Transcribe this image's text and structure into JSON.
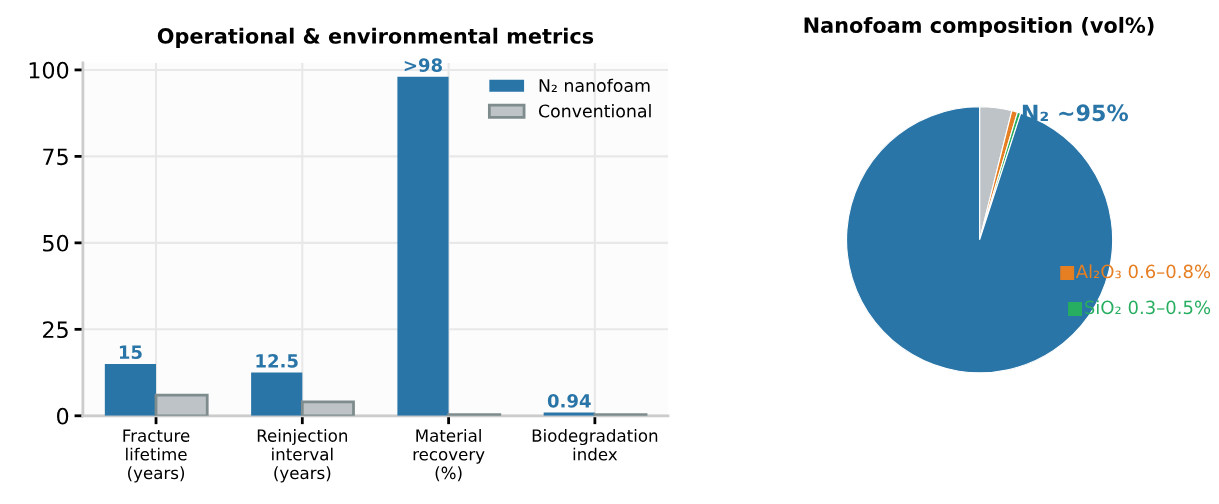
{
  "chart_data": [
    {
      "type": "bar",
      "title": "Operational & environmental metrics",
      "categories": [
        "Fracture\nlifetime\n(years)",
        "Reinjection\ninterval\n(years)",
        "Material\nrecovery\n(%)",
        "Biodegradation\nindex"
      ],
      "series": [
        {
          "name": "N₂ nanofoam",
          "color": "#2a75a8",
          "values": [
            15,
            12.5,
            98,
            0.94
          ],
          "value_labels": [
            "15",
            "12.5",
            ">98",
            "0.94"
          ]
        },
        {
          "name": "Conventional",
          "color": "#bdc3c7",
          "values": [
            6,
            4,
            0.3,
            0.3
          ]
        }
      ],
      "ylim": [
        0,
        102
      ],
      "yticks": [
        0,
        25,
        50,
        75,
        100
      ],
      "grid": true,
      "legend": "top right"
    },
    {
      "type": "pie",
      "title": "Nanofoam composition (vol%)",
      "categories": [
        null,
        "Al₂O₃ 0.6–0.8%",
        "SiO₂ 0.3–0.5%",
        "N₂ ~95%"
      ],
      "values": [
        3.9,
        0.7,
        0.4,
        95
      ],
      "colors": [
        "#bdc3c7",
        "#e67e22",
        "#27ae60",
        "#2a75a8"
      ],
      "legend": "right"
    }
  ]
}
